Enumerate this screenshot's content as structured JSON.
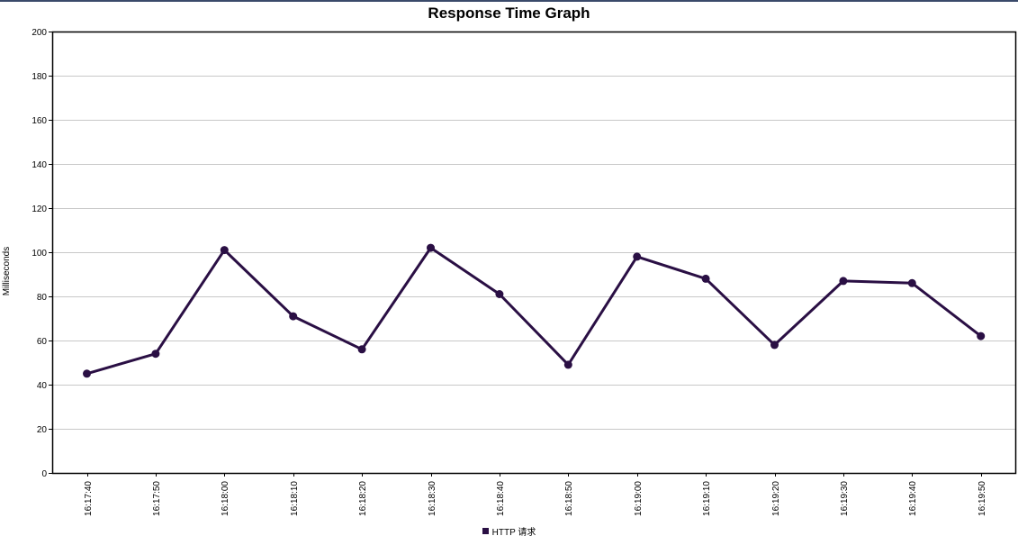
{
  "chart_data": {
    "type": "line",
    "title": "Response Time Graph",
    "ylabel": "Milliseconds",
    "xlabel": "",
    "ylim": [
      0,
      200
    ],
    "yticks": [
      0,
      20,
      40,
      60,
      80,
      100,
      120,
      140,
      160,
      180,
      200
    ],
    "categories": [
      "16:17:40",
      "16:17:50",
      "16:18:00",
      "16:18:10",
      "16:18:20",
      "16:18:30",
      "16:18:40",
      "16:18:50",
      "16:19:00",
      "16:19:10",
      "16:19:20",
      "16:19:30",
      "16:19:40",
      "16:19:50"
    ],
    "series": [
      {
        "name": "HTTP 请求",
        "color": "#2a0f44",
        "values": [
          45,
          54,
          101,
          71,
          56,
          102,
          81,
          49,
          98,
          88,
          58,
          87,
          86,
          62
        ]
      }
    ],
    "grid": true,
    "legend_position": "bottom"
  }
}
